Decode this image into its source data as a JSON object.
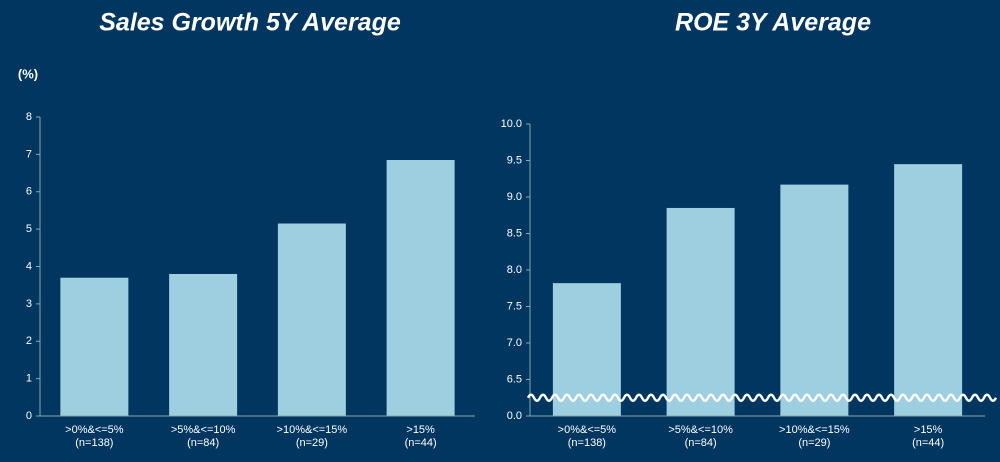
{
  "chart_data": [
    {
      "type": "bar",
      "title": "Sales Growth 5Y Average",
      "y_label": "(%)",
      "categories": [
        [
          ">0%&<=5%",
          "(n=138)"
        ],
        [
          ">5%&<=10%",
          "(n=84)"
        ],
        [
          ">10%&<=15%",
          "(n=29)"
        ],
        [
          ">15%",
          "(n=44)"
        ]
      ],
      "values": [
        3.7,
        3.8,
        5.15,
        6.85
      ],
      "color": "#9ecfe0",
      "ylim": [
        0,
        8
      ],
      "yticks": [
        0,
        1,
        2,
        3,
        4,
        5,
        6,
        7,
        8
      ]
    },
    {
      "type": "bar",
      "title": "ROE 3Y Average",
      "categories": [
        [
          ">0%&<=5%",
          "(n=138)"
        ],
        [
          ">5%&<=10%",
          "(n=84)"
        ],
        [
          ">10%&<=15%",
          "(n=29)"
        ],
        [
          ">15%",
          "(n=44)"
        ]
      ],
      "values": [
        7.82,
        8.85,
        9.17,
        9.45
      ],
      "color": "#9ecfe0",
      "ylim": [
        0,
        10
      ],
      "axis_break": true,
      "yticks": [
        {
          "value": 0,
          "label": "0.0"
        },
        6.5,
        {
          "value": 7,
          "label": "7.0"
        },
        7.5,
        {
          "value": 8,
          "label": "8.0"
        },
        8.5,
        {
          "value": 9,
          "label": "9.0"
        },
        9.5,
        {
          "value": 10,
          "label": "10.0"
        }
      ]
    }
  ]
}
